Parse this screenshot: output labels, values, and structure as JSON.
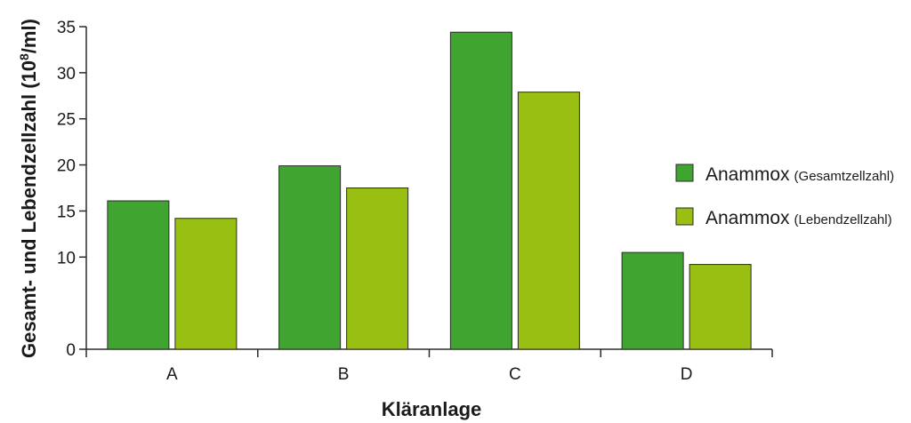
{
  "chart_data": {
    "type": "bar",
    "xlabel": "Kläranlage",
    "ylabel_main": "Gesamt- und Lebendzellzahl (10",
    "ylabel_exp": "8",
    "ylabel_unit": "/ml)",
    "ylim": [
      0,
      35
    ],
    "yticks": [
      "0",
      "10",
      "15",
      "20",
      "25",
      "30",
      "35"
    ],
    "ytick_values": [
      0,
      10,
      15,
      20,
      25,
      30,
      35
    ],
    "categories": [
      "A",
      "B",
      "C",
      "D"
    ],
    "series": [
      {
        "name_main": "Anammox",
        "name_sub": "(Gesamtzellzahl)",
        "color": "#40a530",
        "values": [
          16.1,
          19.9,
          34.4,
          10.5
        ]
      },
      {
        "name_main": "Anammox",
        "name_sub": "(Lebendzellzahl)",
        "color": "#98bf12",
        "values": [
          14.2,
          17.5,
          27.9,
          9.2
        ]
      }
    ],
    "legend_position": "right",
    "grid": false
  }
}
